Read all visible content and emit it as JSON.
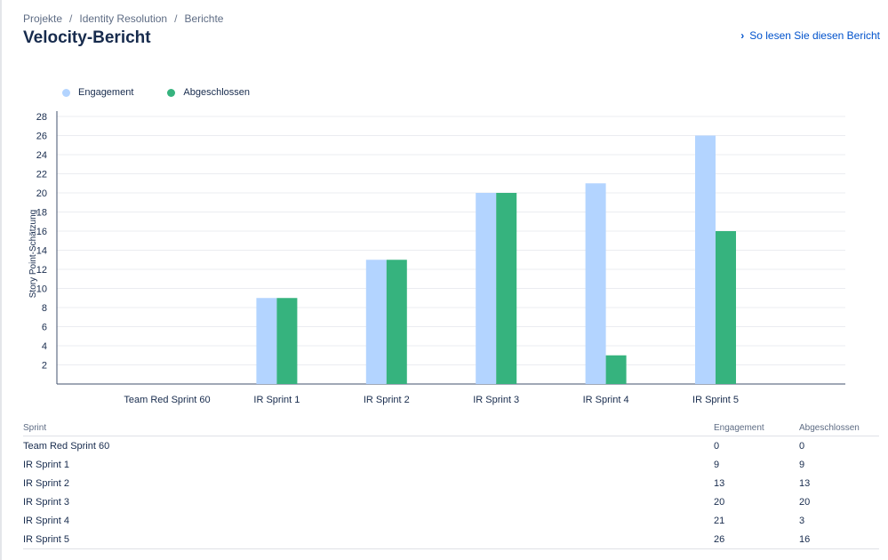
{
  "breadcrumb": {
    "projects": "Projekte",
    "project": "Identity Resolution",
    "reports": "Berichte",
    "separator": "/"
  },
  "page_title": "Velocity-Bericht",
  "help_link": "So lesen Sie diesen Bericht",
  "colors": {
    "engagement": "#b3d4ff",
    "abgeschlossen": "#36b37e",
    "axis": "#42526e",
    "grid": "#ebecf0"
  },
  "chart_data": {
    "type": "bar",
    "title": "",
    "xlabel": "",
    "ylabel": "Story Point-Schätzung",
    "ylim": [
      0,
      28
    ],
    "yticks": [
      2,
      4,
      6,
      8,
      10,
      12,
      14,
      16,
      18,
      20,
      22,
      24,
      26,
      28
    ],
    "categories": [
      "Team Red Sprint 60",
      "IR Sprint 1",
      "IR Sprint 2",
      "IR Sprint 3",
      "IR Sprint 4",
      "IR Sprint 5"
    ],
    "series": [
      {
        "name": "Engagement",
        "values": [
          0,
          9,
          13,
          20,
          21,
          26
        ]
      },
      {
        "name": "Abgeschlossen",
        "values": [
          0,
          9,
          13,
          20,
          3,
          16
        ]
      }
    ],
    "legend": "top-left",
    "grid": true
  },
  "table": {
    "headers": {
      "sprint": "Sprint",
      "engagement": "Engagement",
      "abgeschlossen": "Abgeschlossen"
    },
    "rows": [
      {
        "sprint": "Team Red Sprint 60",
        "engagement": "0",
        "abgeschlossen": "0"
      },
      {
        "sprint": "IR Sprint 1",
        "engagement": "9",
        "abgeschlossen": "9"
      },
      {
        "sprint": "IR Sprint 2",
        "engagement": "13",
        "abgeschlossen": "13"
      },
      {
        "sprint": "IR Sprint 3",
        "engagement": "20",
        "abgeschlossen": "20"
      },
      {
        "sprint": "IR Sprint 4",
        "engagement": "21",
        "abgeschlossen": "3"
      },
      {
        "sprint": "IR Sprint 5",
        "engagement": "26",
        "abgeschlossen": "16"
      }
    ]
  }
}
